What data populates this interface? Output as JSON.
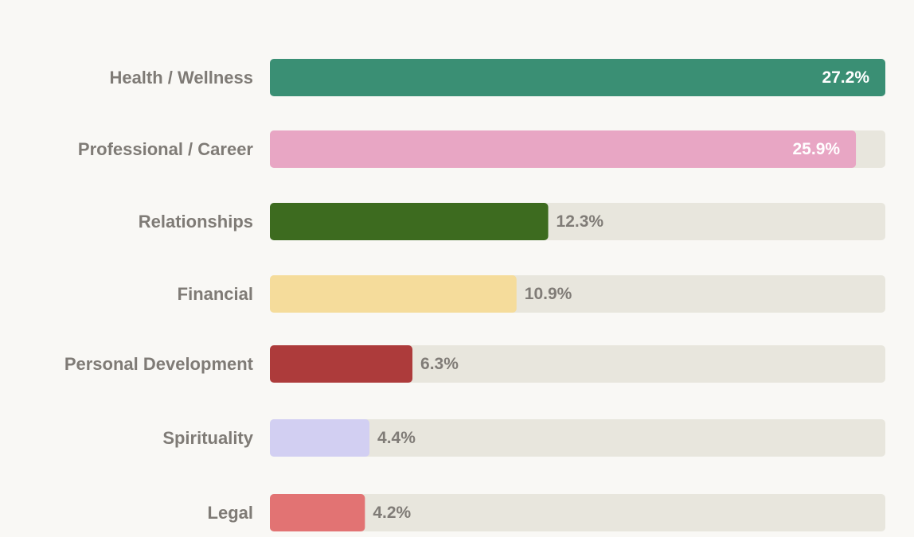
{
  "chart_data": {
    "type": "bar",
    "orientation": "horizontal",
    "title": "",
    "xlabel": "",
    "ylabel": "",
    "xlim": [
      0,
      27.2
    ],
    "grid": false,
    "legend": "none",
    "track_color": "#e8e6dd",
    "categories": [
      "Health / Wellness",
      "Professional / Career",
      "Relationships",
      "Financial",
      "Personal Development",
      "Spirituality",
      "Legal"
    ],
    "values": [
      27.2,
      25.9,
      12.3,
      10.9,
      6.3,
      4.4,
      4.2
    ],
    "value_labels": [
      "27.2%",
      "25.9%",
      "12.3%",
      "10.9%",
      "6.3%",
      "4.4%",
      "4.2%"
    ],
    "colors": [
      "#3a8f74",
      "#e8a6c4",
      "#3d6b1f",
      "#f5dc9b",
      "#ad3b3b",
      "#d2cff2",
      "#e27373"
    ],
    "value_label_inside": [
      true,
      true,
      false,
      false,
      false,
      false,
      false
    ]
  }
}
